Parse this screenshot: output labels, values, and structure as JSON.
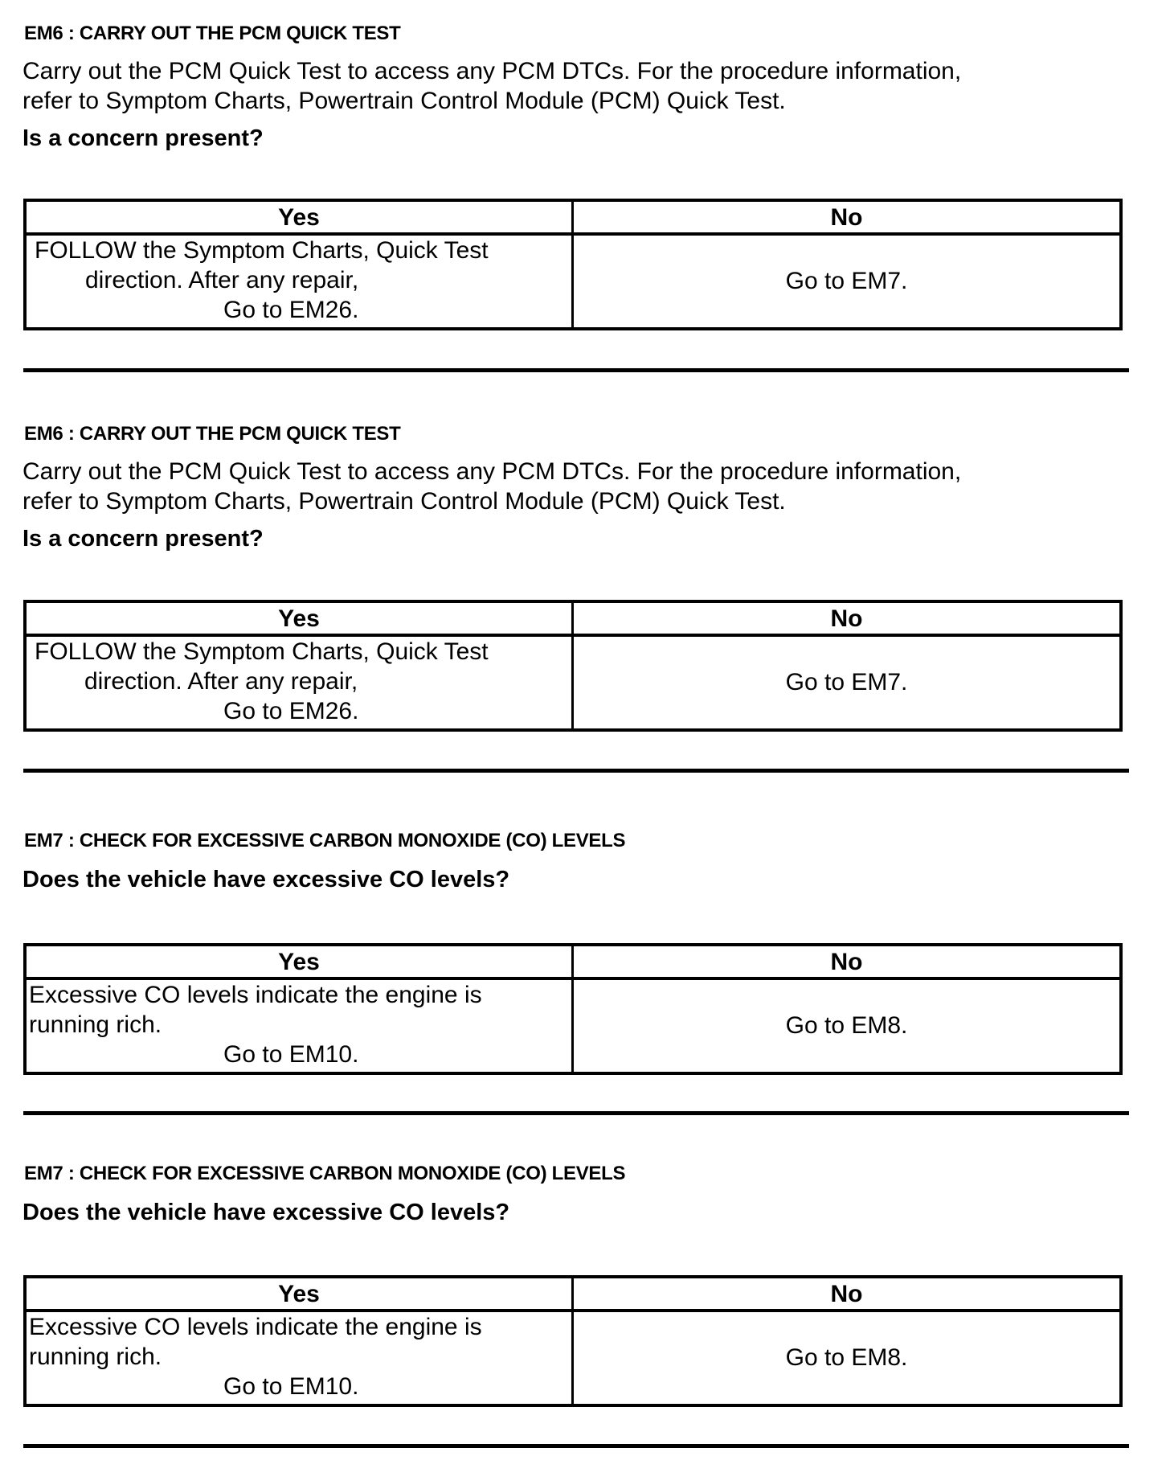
{
  "sections": [
    {
      "heading": "EM6 : CARRY OUT THE PCM QUICK TEST",
      "paragraph": [
        "Carry out the PCM Quick Test to access any PCM  DTCs. For the procedure information,",
        "refer to Symptom Charts, Powertrain Control Module (PCM) Quick Test."
      ],
      "question": "Is a concern present?",
      "yes_label": "Yes",
      "no_label": "No",
      "yes_lines": [
        "FOLLOW the Symptom Charts, Quick Test",
        "direction.  After any repair,",
        "Go to EM26."
      ],
      "no_text": "Go to EM7."
    },
    {
      "heading": "EM6 : CARRY OUT THE PCM QUICK TEST",
      "paragraph": [
        "Carry out the PCM Quick Test to access any PCM  DTCs. For the procedure information,",
        "refer to  Symptom Charts, Powertrain Control Module (PCM) Quick Test."
      ],
      "question": "Is a concern present?",
      "yes_label": "Yes",
      "no_label": "No",
      "yes_lines": [
        "FOLLOW the Symptom Charts, Quick Test",
        "direction.  After any repair,",
        "Go to EM26."
      ],
      "no_text": "Go to EM7."
    },
    {
      "heading": "EM7 : CHECK FOR EXCESSIVE CARBON MONOXIDE (CO) LEVELS",
      "question": "Does the vehicle have excessive CO levels?",
      "yes_label": "Yes",
      "no_label": "No",
      "yes_lines": [
        "Excessive CO levels indicate the engine is",
        "running rich.",
        "Go to EM10."
      ],
      "no_text": "Go to EM8."
    },
    {
      "heading": "EM7 : CHECK FOR EXCESSIVE CARBON MONOXIDE (CO) LEVELS",
      "question": "Does the vehicle have excessive CO levels?",
      "yes_label": "Yes",
      "no_label": "No",
      "yes_lines": [
        "Excessive CO levels indicate the engine is",
        "running rich.",
        "Go to EM10."
      ],
      "no_text": "Go to EM8."
    }
  ]
}
